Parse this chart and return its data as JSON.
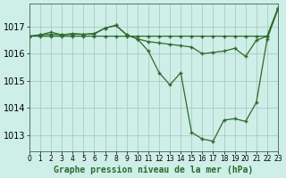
{
  "background_color": "#ceeee8",
  "line_color": "#2d6a2d",
  "grid_color": "#a8ccc4",
  "xlabel": "Graphe pression niveau de la mer (hPa)",
  "xlabel_fontsize": 7,
  "ytick_fontsize": 7,
  "xtick_fontsize": 5.5,
  "ylim": [
    1012.4,
    1017.85
  ],
  "xlim": [
    0,
    23
  ],
  "yticks": [
    1013,
    1014,
    1015,
    1016,
    1017
  ],
  "xticks": [
    0,
    1,
    2,
    3,
    4,
    5,
    6,
    7,
    8,
    9,
    10,
    11,
    12,
    13,
    14,
    15,
    16,
    17,
    18,
    19,
    20,
    21,
    22,
    23
  ],
  "series": [
    {
      "x": [
        0,
        1,
        2,
        3,
        4,
        5,
        6,
        7,
        8,
        9,
        10,
        11,
        12,
        13,
        14,
        15,
        16,
        17,
        18,
        19,
        20,
        21,
        22,
        23
      ],
      "y": [
        1016.65,
        1016.65,
        1016.65,
        1016.65,
        1016.65,
        1016.65,
        1016.65,
        1016.65,
        1016.65,
        1016.65,
        1016.65,
        1016.65,
        1016.65,
        1016.65,
        1016.65,
        1016.65,
        1016.65,
        1016.65,
        1016.65,
        1016.65,
        1016.65,
        1016.65,
        1016.65,
        1017.7
      ]
    },
    {
      "x": [
        0,
        1,
        2,
        3,
        4,
        5,
        6,
        7,
        8,
        9,
        10,
        11,
        12,
        13,
        14,
        15,
        16,
        17,
        18,
        19,
        20,
        21,
        22,
        23
      ],
      "y": [
        1016.65,
        1016.7,
        1016.72,
        1016.7,
        1016.75,
        1016.72,
        1016.75,
        1016.95,
        1017.05,
        1016.7,
        1016.55,
        1016.45,
        1016.4,
        1016.35,
        1016.3,
        1016.25,
        1016.0,
        1016.05,
        1016.1,
        1016.2,
        1015.9,
        1016.5,
        1016.65,
        1017.65
      ]
    },
    {
      "x": [
        0,
        1,
        2,
        3,
        4,
        5,
        6,
        7,
        8,
        9,
        10,
        11,
        12,
        13,
        14,
        15,
        16,
        17,
        18,
        19,
        20,
        21,
        22,
        23
      ],
      "y": [
        1016.65,
        1016.7,
        1016.8,
        1016.7,
        1016.72,
        1016.72,
        1016.73,
        1016.95,
        1017.05,
        1016.7,
        1016.55,
        1016.1,
        1015.3,
        1014.85,
        1015.3,
        1013.1,
        1012.85,
        1012.77,
        1013.55,
        1013.6,
        1013.5,
        1014.2,
        1016.55,
        1017.65
      ]
    }
  ]
}
